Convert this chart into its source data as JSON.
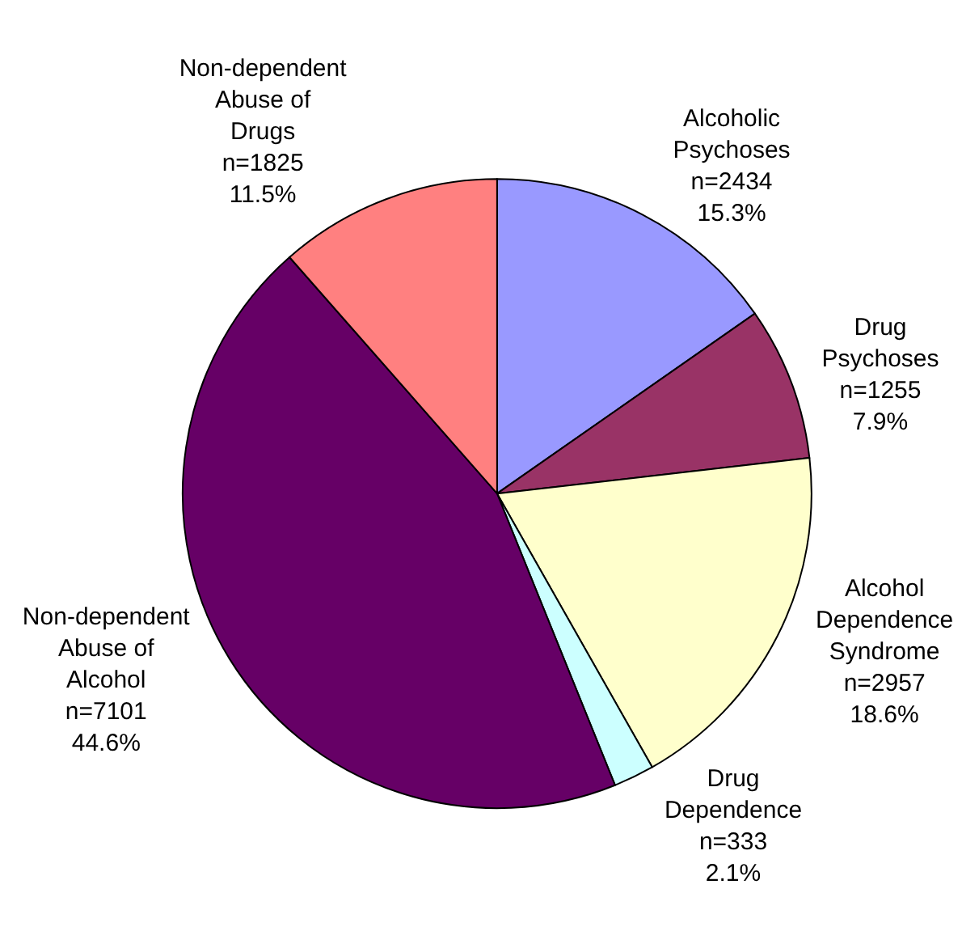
{
  "chart_data": {
    "type": "pie",
    "categories": [
      "Alcoholic Psychoses",
      "Drug Psychoses",
      "Alcohol Dependence Syndrome",
      "Drug Dependence",
      "Non-dependent Abuse of Alcohol",
      "Non-dependent Abuse of Drugs"
    ],
    "values": [
      2434,
      1255,
      2957,
      333,
      7101,
      1825
    ],
    "value_labels": [
      "n=2434\n15.3%",
      "n=1255\n7.9%",
      "n=2957\n18.6%",
      "n=333\n2.1%",
      "n=7101\n44.6%",
      "n=1825\n11.5%"
    ],
    "colors": [
      "#9999ff",
      "#993366",
      "#ffffcc",
      "#ccffff",
      "#660066",
      "#ff8080"
    ],
    "legend": false
  }
}
